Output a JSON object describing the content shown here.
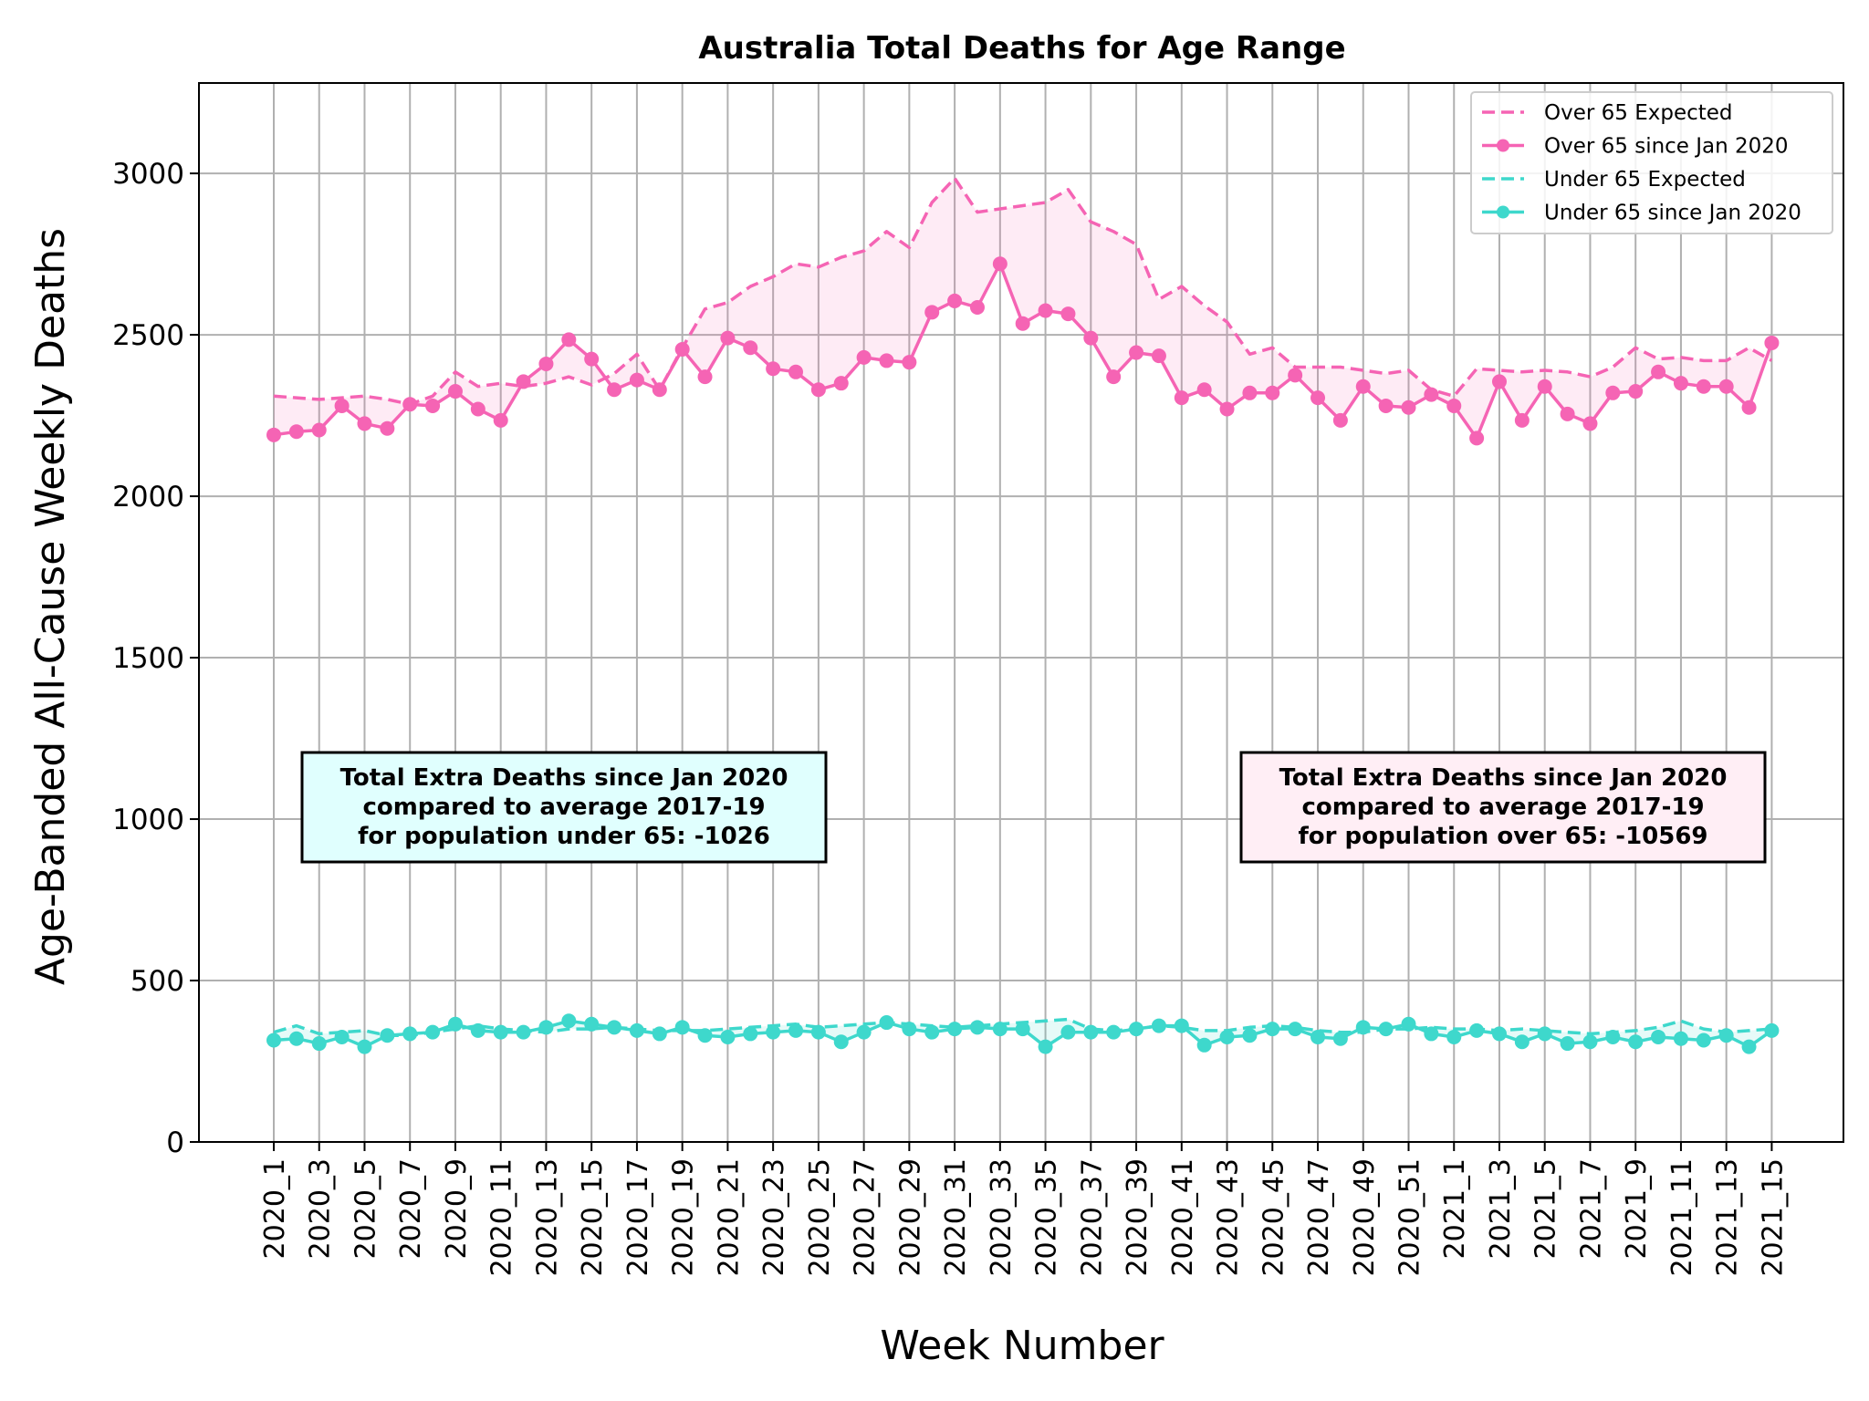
{
  "chart_data": {
    "type": "line",
    "title": "Australia Total Deaths for Age Range",
    "xlabel": "Week Number",
    "ylabel": "Age-Banded All-Cause Weekly Deaths",
    "ylim": [
      0,
      3280
    ],
    "yticks": [
      0,
      500,
      1000,
      1500,
      2000,
      2500,
      3000
    ],
    "grid": true,
    "legend_position": "top-right",
    "categories": [
      "2020_1",
      "2020_2",
      "2020_3",
      "2020_4",
      "2020_5",
      "2020_6",
      "2020_7",
      "2020_8",
      "2020_9",
      "2020_10",
      "2020_11",
      "2020_12",
      "2020_13",
      "2020_14",
      "2020_15",
      "2020_16",
      "2020_17",
      "2020_18",
      "2020_19",
      "2020_20",
      "2020_21",
      "2020_22",
      "2020_23",
      "2020_24",
      "2020_25",
      "2020_26",
      "2020_27",
      "2020_28",
      "2020_29",
      "2020_30",
      "2020_31",
      "2020_32",
      "2020_33",
      "2020_34",
      "2020_35",
      "2020_36",
      "2020_37",
      "2020_38",
      "2020_39",
      "2020_40",
      "2020_41",
      "2020_42",
      "2020_43",
      "2020_44",
      "2020_45",
      "2020_46",
      "2020_47",
      "2020_48",
      "2020_49",
      "2020_50",
      "2020_51",
      "2020_52",
      "2021_1",
      "2021_2",
      "2021_3",
      "2021_4",
      "2021_5",
      "2021_6",
      "2021_7",
      "2021_8",
      "2021_9",
      "2021_10",
      "2021_11",
      "2021_12",
      "2021_13",
      "2021_14",
      "2021_15"
    ],
    "tick_labels": [
      "2020_1",
      "2020_3",
      "2020_5",
      "2020_7",
      "2020_9",
      "2020_11",
      "2020_13",
      "2020_15",
      "2020_17",
      "2020_19",
      "2020_21",
      "2020_23",
      "2020_25",
      "2020_27",
      "2020_29",
      "2020_31",
      "2020_33",
      "2020_35",
      "2020_37",
      "2020_39",
      "2020_41",
      "2020_43",
      "2020_45",
      "2020_47",
      "2020_49",
      "2020_51",
      "2021_1",
      "2021_3",
      "2021_5",
      "2021_7",
      "2021_9",
      "2021_11",
      "2021_13",
      "2021_15"
    ],
    "series": [
      {
        "name": "Over 65 Expected",
        "color": "#f564b4",
        "style": "dashed",
        "values": [
          2310,
          2305,
          2300,
          2305,
          2310,
          2300,
          2285,
          2310,
          2385,
          2340,
          2350,
          2340,
          2350,
          2370,
          2345,
          2380,
          2440,
          2330,
          2460,
          2580,
          2600,
          2650,
          2680,
          2720,
          2710,
          2740,
          2760,
          2820,
          2770,
          2910,
          2985,
          2880,
          2890,
          2900,
          2910,
          2950,
          2850,
          2820,
          2780,
          2610,
          2650,
          2590,
          2540,
          2440,
          2460,
          2400,
          2400,
          2400,
          2390,
          2380,
          2390,
          2330,
          2310,
          2395,
          2390,
          2385,
          2390,
          2385,
          2370,
          2400,
          2460,
          2425,
          2430,
          2420,
          2420,
          2460,
          2420
        ]
      },
      {
        "name": "Over 65 since Jan 2020",
        "color": "#f564b4",
        "style": "solid-marker",
        "values": [
          2190,
          2200,
          2205,
          2280,
          2225,
          2210,
          2285,
          2280,
          2325,
          2270,
          2235,
          2355,
          2410,
          2485,
          2425,
          2330,
          2360,
          2330,
          2455,
          2370,
          2490,
          2460,
          2395,
          2385,
          2330,
          2350,
          2430,
          2420,
          2415,
          2570,
          2605,
          2585,
          2720,
          2535,
          2575,
          2565,
          2490,
          2370,
          2445,
          2435,
          2305,
          2330,
          2270,
          2320,
          2320,
          2375,
          2305,
          2235,
          2340,
          2280,
          2275,
          2315,
          2280,
          2180,
          2355,
          2235,
          2340,
          2255,
          2225,
          2320,
          2325,
          2385,
          2350,
          2340,
          2340,
          2275,
          2475
        ]
      },
      {
        "name": "Under 65 Expected",
        "color": "#3ed8cc",
        "style": "dashed",
        "values": [
          340,
          360,
          335,
          340,
          345,
          330,
          330,
          340,
          350,
          360,
          350,
          345,
          340,
          350,
          350,
          355,
          350,
          345,
          345,
          345,
          350,
          355,
          360,
          365,
          355,
          360,
          365,
          370,
          365,
          360,
          355,
          360,
          365,
          370,
          375,
          380,
          350,
          345,
          350,
          360,
          355,
          345,
          345,
          355,
          360,
          355,
          345,
          340,
          340,
          350,
          350,
          355,
          350,
          350,
          345,
          350,
          345,
          340,
          335,
          340,
          345,
          355,
          375,
          350,
          340,
          345,
          350
        ]
      },
      {
        "name": "Under 65 since Jan 2020",
        "color": "#3ed8cc",
        "style": "solid-marker",
        "values": [
          315,
          320,
          305,
          325,
          295,
          330,
          335,
          340,
          365,
          345,
          340,
          340,
          355,
          375,
          365,
          355,
          345,
          335,
          355,
          330,
          325,
          335,
          340,
          345,
          340,
          310,
          340,
          370,
          350,
          340,
          350,
          355,
          350,
          350,
          295,
          340,
          340,
          340,
          350,
          360,
          360,
          300,
          325,
          330,
          350,
          350,
          325,
          320,
          355,
          350,
          365,
          335,
          325,
          345,
          335,
          310,
          335,
          305,
          310,
          325,
          310,
          325,
          320,
          315,
          330,
          295,
          345
        ]
      }
    ],
    "annotations": [
      {
        "lines": [
          "Total Extra Deaths since Jan 2020",
          "compared to average 2017-19",
          "for population under 65: -1026"
        ],
        "bg": "#e0fffe"
      },
      {
        "lines": [
          "Total Extra Deaths since Jan 2020",
          "compared to average 2017-19",
          "for population over 65: -10569"
        ],
        "bg": "#ffeef5"
      }
    ]
  }
}
